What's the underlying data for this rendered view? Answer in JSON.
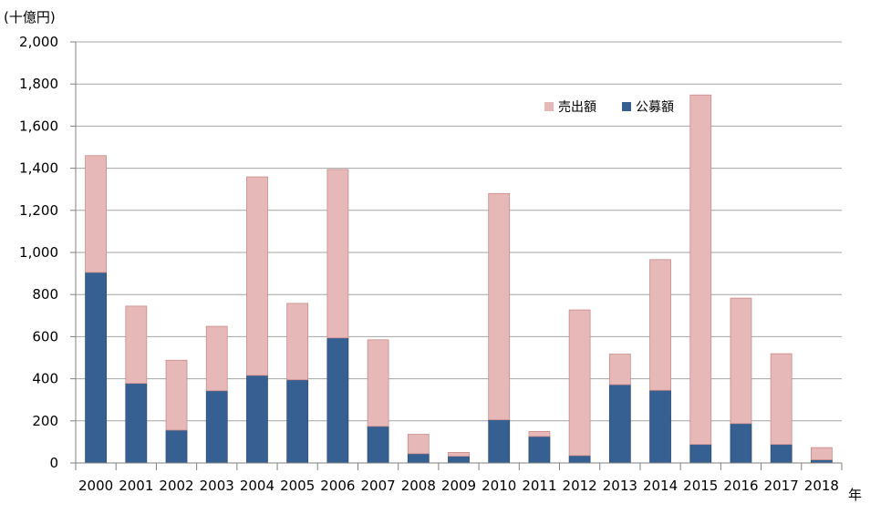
{
  "chart_data": {
    "type": "bar",
    "stacked": true,
    "y_unit_label": "(十億円)",
    "x_unit_label": "年",
    "categories": [
      "2000",
      "2001",
      "2002",
      "2003",
      "2004",
      "2005",
      "2006",
      "2007",
      "2008",
      "2009",
      "2010",
      "2011",
      "2012",
      "2013",
      "2014",
      "2015",
      "2016",
      "2017",
      "2018"
    ],
    "series": [
      {
        "name": "公募額",
        "color": "#366092",
        "values": [
          905,
          378,
          156,
          343,
          416,
          395,
          594,
          174,
          44,
          32,
          205,
          126,
          35,
          372,
          345,
          88,
          187,
          88,
          15
        ]
      },
      {
        "name": "売出額",
        "color": "#e6b9b8",
        "values": [
          555,
          367,
          332,
          306,
          943,
          363,
          800,
          411,
          92,
          18,
          1075,
          24,
          692,
          145,
          621,
          1660,
          596,
          431,
          58
        ]
      }
    ],
    "legend_order": [
      "売出額",
      "公募額"
    ],
    "legend_position": "top-right",
    "ylim": [
      0,
      2000
    ],
    "yticks": [
      0,
      200,
      400,
      600,
      800,
      1000,
      1200,
      1400,
      1600,
      1800,
      2000
    ],
    "ytick_labels": [
      "0",
      "200",
      "400",
      "600",
      "800",
      "1,000",
      "1,200",
      "1,400",
      "1,600",
      "1,800",
      "2,000"
    ],
    "grid": true
  }
}
